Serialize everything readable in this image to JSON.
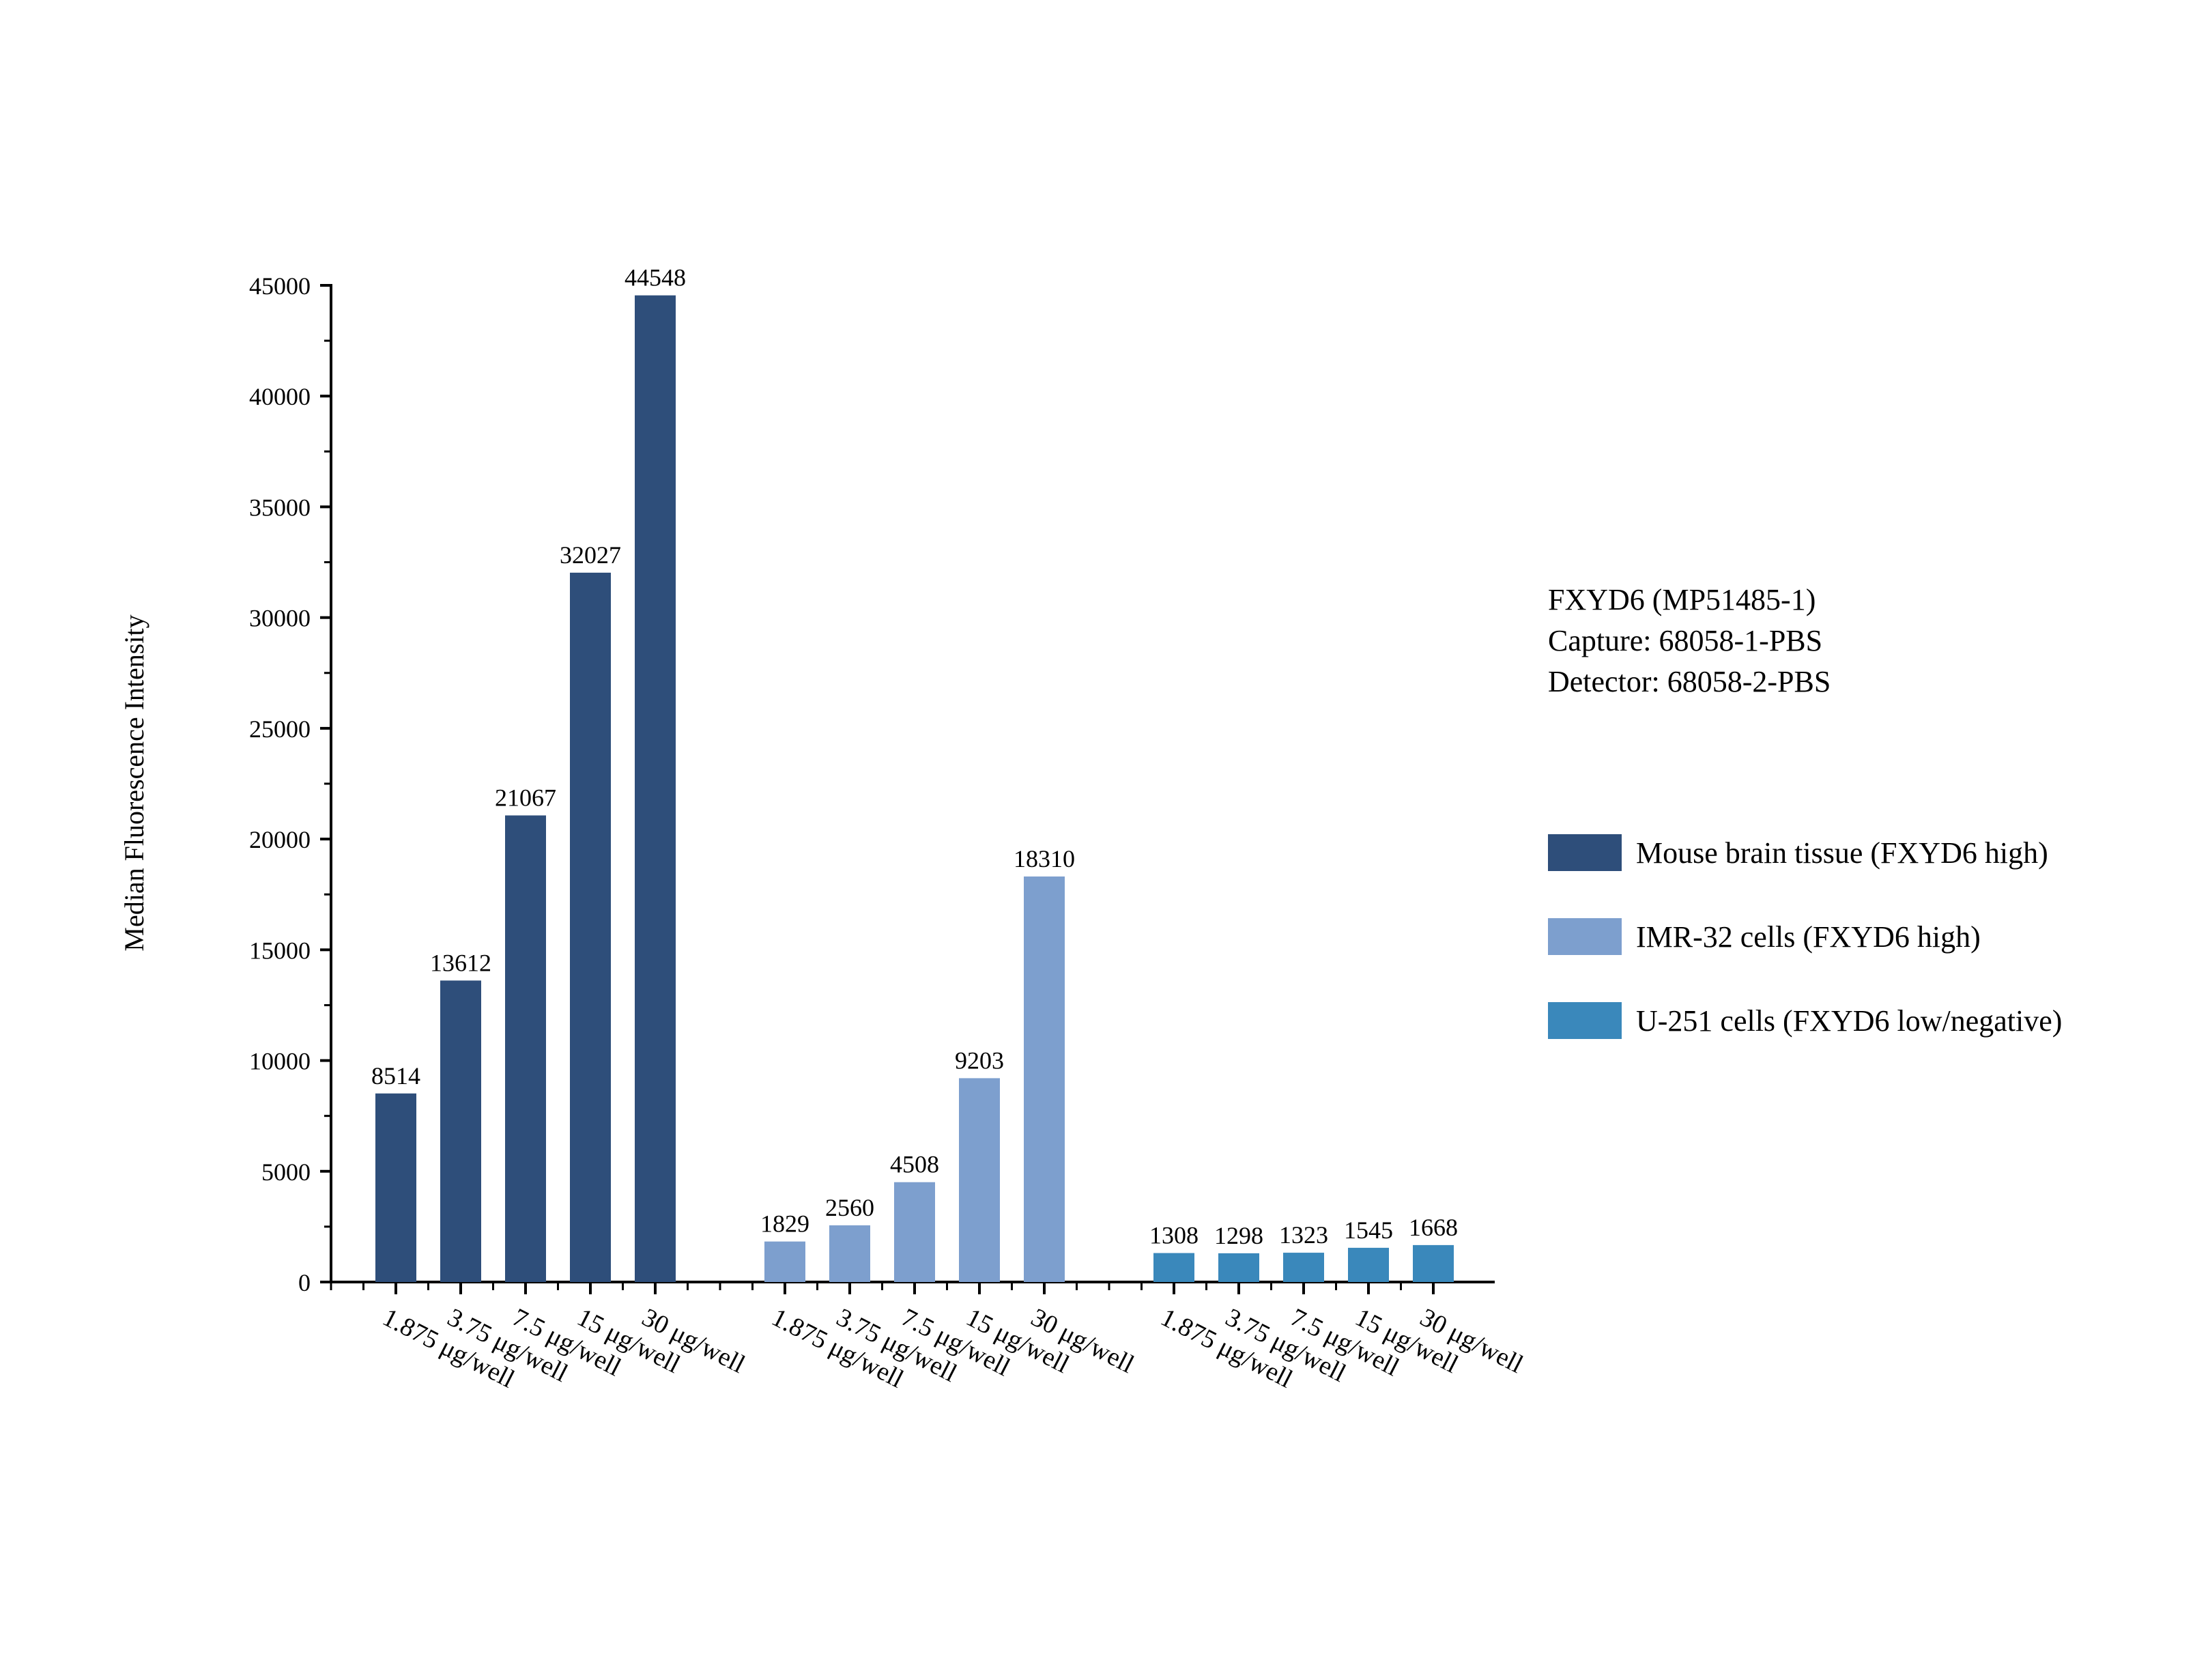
{
  "chart_data": {
    "type": "bar",
    "ylabel": "Median Fluorescence Intensity",
    "xlabel": "",
    "ylim": [
      0,
      45000
    ],
    "y_ticks": [
      0,
      5000,
      10000,
      15000,
      20000,
      25000,
      30000,
      35000,
      40000,
      45000
    ],
    "y_tick_labels": [
      "0",
      "5000",
      "10000",
      "15000",
      "20000",
      "25000",
      "30000",
      "35000",
      "40000",
      "45000"
    ],
    "categories": [
      "1.875 μg/well",
      "3.75 μg/well",
      "7.5 μg/well",
      "15 μg/well",
      "30 μg/well"
    ],
    "series": [
      {
        "name": "Mouse brain tissue (FXYD6 high)",
        "color": "#2e4e7a",
        "values": [
          8514,
          13612,
          21067,
          32027,
          44548
        ],
        "labels": [
          "8514",
          "13612",
          "21067",
          "32027",
          "44548"
        ]
      },
      {
        "name": "IMR-32 cells (FXYD6 high)",
        "color": "#7d9fce",
        "values": [
          1829,
          2560,
          4508,
          9203,
          18310
        ],
        "labels": [
          "1829",
          "2560",
          "4508",
          "9203",
          "18310"
        ]
      },
      {
        "name": "U-251 cells (FXYD6 low/negative)",
        "color": "#3a88bb",
        "values": [
          1308,
          1298,
          1323,
          1545,
          1668
        ],
        "labels": [
          "1308",
          "1298",
          "1323",
          "1545",
          "1668"
        ]
      }
    ],
    "annotation": [
      "FXYD6 (MP51485-1)",
      "Capture: 68058-1-PBS",
      "Detector: 68058-2-PBS"
    ],
    "legend_position": "right",
    "grid": false
  }
}
